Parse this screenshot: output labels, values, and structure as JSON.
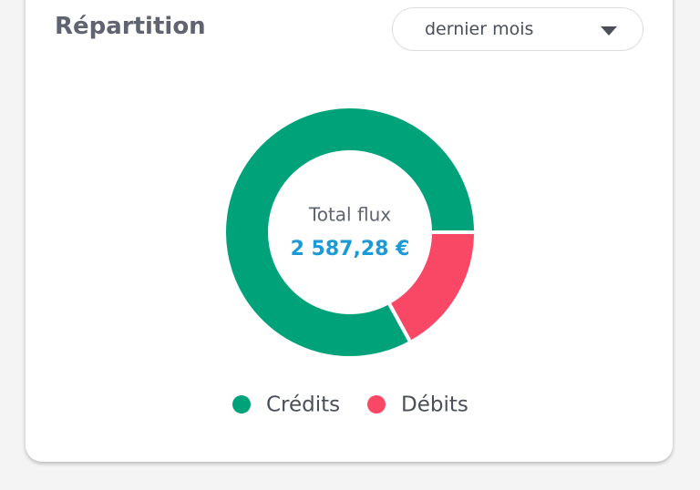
{
  "header": {
    "title": "Répartition",
    "period_select": "dernier mois"
  },
  "chart_data": {
    "type": "pie",
    "donut": true,
    "categories": [
      "Crédits",
      "Débits"
    ],
    "values": [
      83,
      17
    ],
    "colors": [
      "#00a27a",
      "#f94866"
    ],
    "center_label": "Total flux",
    "center_value": "2 587,28 €"
  }
}
